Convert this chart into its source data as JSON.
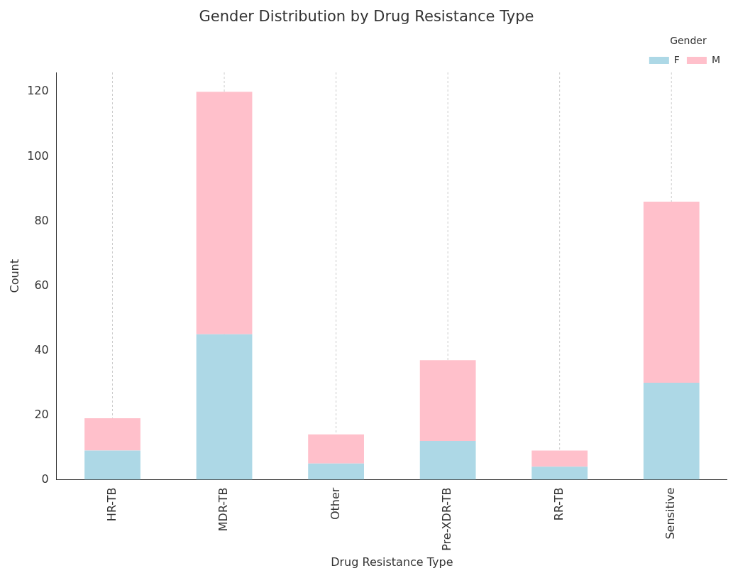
{
  "chart_data": {
    "type": "bar",
    "title": "Gender Distribution by Drug Resistance Type",
    "xlabel": "Drug Resistance Type",
    "ylabel": "Count",
    "legend_title": "Gender",
    "categories": [
      "HR-TB",
      "MDR-TB",
      "Other",
      "Pre-XDR-TB",
      "RR-TB",
      "Sensitive"
    ],
    "stacked": true,
    "series": [
      {
        "name": "F",
        "color": "#add8e6",
        "values": [
          9,
          45,
          5,
          12,
          4,
          30
        ]
      },
      {
        "name": "M",
        "color": "#ffc0cb",
        "values": [
          10,
          75,
          9,
          25,
          5,
          56
        ]
      }
    ],
    "ylim": [
      0,
      126
    ],
    "yticks": [
      0,
      20,
      40,
      60,
      80,
      100,
      120
    ],
    "grid": "x",
    "legend": "top right"
  }
}
